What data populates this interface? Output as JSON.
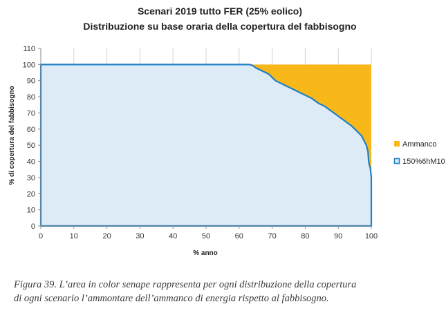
{
  "chart_data": {
    "type": "area",
    "title_lines": [
      "Scenari 2019 tutto FER (25% eolico)",
      "Distribuzione su base oraria della copertura del fabbisogno"
    ],
    "xlabel": "% anno",
    "ylabel": "% di copertura del fabbisogno",
    "xlim": [
      0,
      100
    ],
    "ylim": [
      0,
      110
    ],
    "x_ticks": [
      0,
      10,
      20,
      30,
      40,
      50,
      60,
      70,
      80,
      90,
      100
    ],
    "y_ticks": [
      0,
      10,
      20,
      30,
      40,
      50,
      60,
      70,
      80,
      90,
      100,
      110
    ],
    "grid": "vertical",
    "legend_position": "right",
    "colors": {
      "shortfall": "#F9B81A",
      "coverage_fill": "#DDEBF7",
      "coverage_line": "#1F7FC4"
    },
    "series": [
      {
        "name": "150%6hM10",
        "role": "coverage",
        "x": [
          0,
          63,
          64,
          65,
          66,
          67,
          68,
          69,
          70,
          71,
          72,
          74,
          76,
          78,
          80,
          82,
          84,
          86,
          88,
          90,
          92,
          94,
          95,
          96,
          97,
          97.5,
          98,
          98.5,
          99,
          99.2,
          99.5,
          99.7,
          100,
          100
        ],
        "y": [
          100,
          100,
          99.5,
          98,
          97,
          96,
          95,
          94,
          92,
          90,
          89,
          87,
          85,
          83,
          81,
          79,
          76,
          74,
          71,
          68,
          65,
          62,
          60,
          58,
          56,
          54,
          52,
          50,
          46,
          40,
          37,
          36,
          30,
          0
        ]
      },
      {
        "name": "Ammanco",
        "role": "shortfall",
        "level": 100
      }
    ]
  },
  "caption": {
    "lines": [
      "Figura 39. L’area in color senape rappresenta per ogni distribuzione della copertura",
      "di ogni scenario l’ammontare dell’ammanco di energia rispetto al fabbisogno."
    ]
  }
}
